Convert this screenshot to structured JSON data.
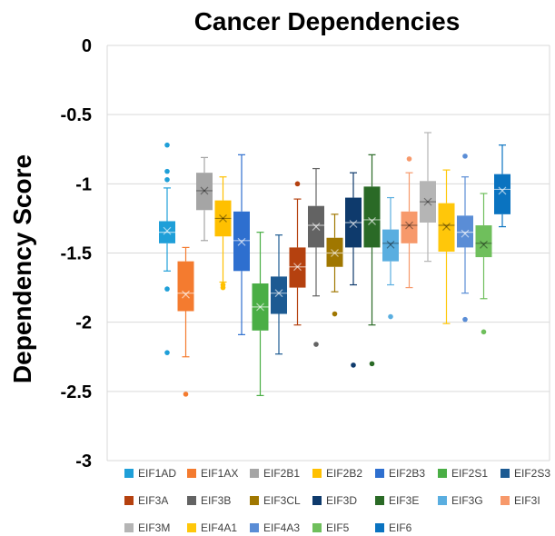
{
  "chart_data": {
    "type": "box",
    "title": "Cancer Dependencies",
    "ylabel": "Dependency Score",
    "ylim": [
      -3,
      0
    ],
    "yticks": [
      0,
      -0.5,
      -1,
      -1.5,
      -2,
      -2.5,
      -3
    ],
    "grid": true,
    "legend": "bottom",
    "series": [
      {
        "name": "EIF1AD",
        "color": "#1f9fd8",
        "whisker_high": -1.03,
        "q3": -1.27,
        "median": -1.35,
        "mean": -1.34,
        "q1": -1.43,
        "whisker_low": -1.63,
        "outliers": [
          -0.72,
          -0.91,
          -0.97,
          -1.76,
          -2.22
        ]
      },
      {
        "name": "EIF1AX",
        "color": "#f47b2f",
        "whisker_high": -1.46,
        "q3": -1.56,
        "median": -1.79,
        "mean": -1.8,
        "q1": -1.92,
        "whisker_low": -2.25,
        "outliers": [
          -2.52
        ]
      },
      {
        "name": "EIF2B1",
        "color": "#a5a5a5",
        "whisker_high": -0.81,
        "q3": -0.92,
        "median": -1.05,
        "mean": -1.05,
        "q1": -1.19,
        "whisker_low": -1.41,
        "outliers": []
      },
      {
        "name": "EIF2B2",
        "color": "#ffc000",
        "whisker_high": -0.95,
        "q3": -1.12,
        "median": -1.25,
        "mean": -1.25,
        "q1": -1.38,
        "whisker_low": -1.71,
        "outliers": [
          -1.73,
          -1.75
        ]
      },
      {
        "name": "EIF2B3",
        "color": "#2e6fcf",
        "whisker_high": -0.79,
        "q3": -1.2,
        "median": -1.41,
        "mean": -1.42,
        "q1": -1.63,
        "whisker_low": -2.09,
        "outliers": []
      },
      {
        "name": "EIF2S1",
        "color": "#4aae45",
        "whisker_high": -1.35,
        "q3": -1.72,
        "median": -1.89,
        "mean": -1.89,
        "q1": -2.06,
        "whisker_low": -2.53,
        "outliers": []
      },
      {
        "name": "EIF2S3",
        "color": "#1c5a92",
        "whisker_high": -1.37,
        "q3": -1.67,
        "median": -1.79,
        "mean": -1.79,
        "q1": -1.94,
        "whisker_low": -2.23,
        "outliers": []
      },
      {
        "name": "EIF3A",
        "color": "#b5410f",
        "whisker_high": -1.11,
        "q3": -1.46,
        "median": -1.6,
        "mean": -1.6,
        "q1": -1.75,
        "whisker_low": -2.02,
        "outliers": [
          -1.0
        ]
      },
      {
        "name": "EIF3B",
        "color": "#636363",
        "whisker_high": -0.89,
        "q3": -1.16,
        "median": -1.3,
        "mean": -1.31,
        "q1": -1.46,
        "whisker_low": -1.81,
        "outliers": [
          -2.16
        ]
      },
      {
        "name": "EIF3CL",
        "color": "#a07700",
        "whisker_high": -1.22,
        "q3": -1.39,
        "median": -1.5,
        "mean": -1.5,
        "q1": -1.6,
        "whisker_low": -1.78,
        "outliers": [
          -1.94
        ]
      },
      {
        "name": "EIF3D",
        "color": "#0e3a6c",
        "whisker_high": -0.92,
        "q3": -1.1,
        "median": -1.28,
        "mean": -1.29,
        "q1": -1.46,
        "whisker_low": -1.73,
        "outliers": [
          -2.31
        ]
      },
      {
        "name": "EIF3E",
        "color": "#2a6a26",
        "whisker_high": -0.79,
        "q3": -1.02,
        "median": -1.26,
        "mean": -1.27,
        "q1": -1.46,
        "whisker_low": -2.02,
        "outliers": [
          -2.3
        ]
      },
      {
        "name": "EIF3G",
        "color": "#5aaee0",
        "whisker_high": -1.1,
        "q3": -1.33,
        "median": -1.43,
        "mean": -1.44,
        "q1": -1.56,
        "whisker_low": -1.73,
        "outliers": [
          -1.96
        ]
      },
      {
        "name": "EIF3I",
        "color": "#f7996b",
        "whisker_high": -0.92,
        "q3": -1.2,
        "median": -1.3,
        "mean": -1.3,
        "q1": -1.43,
        "whisker_low": -1.75,
        "outliers": [
          -0.82
        ]
      },
      {
        "name": "EIF3M",
        "color": "#b5b5b5",
        "whisker_high": -0.63,
        "q3": -0.98,
        "median": -1.13,
        "mean": -1.13,
        "q1": -1.28,
        "whisker_low": -1.56,
        "outliers": []
      },
      {
        "name": "EIF4A1",
        "color": "#ffc70a",
        "whisker_high": -0.9,
        "q3": -1.14,
        "median": -1.3,
        "mean": -1.31,
        "q1": -1.49,
        "whisker_low": -2.01,
        "outliers": []
      },
      {
        "name": "EIF4A3",
        "color": "#5a8dd6",
        "whisker_high": -0.95,
        "q3": -1.23,
        "median": -1.35,
        "mean": -1.36,
        "q1": -1.46,
        "whisker_low": -1.79,
        "outliers": [
          -0.8,
          -1.98
        ]
      },
      {
        "name": "EIF5",
        "color": "#6fbf5c",
        "whisker_high": -1.07,
        "q3": -1.3,
        "median": -1.43,
        "mean": -1.44,
        "q1": -1.53,
        "whisker_low": -1.83,
        "outliers": [
          -2.07
        ]
      },
      {
        "name": "EIF6",
        "color": "#0a73c0",
        "whisker_high": -0.72,
        "q3": -0.93,
        "median": -1.04,
        "mean": -1.05,
        "q1": -1.22,
        "whisker_low": -1.31,
        "outliers": []
      }
    ]
  }
}
